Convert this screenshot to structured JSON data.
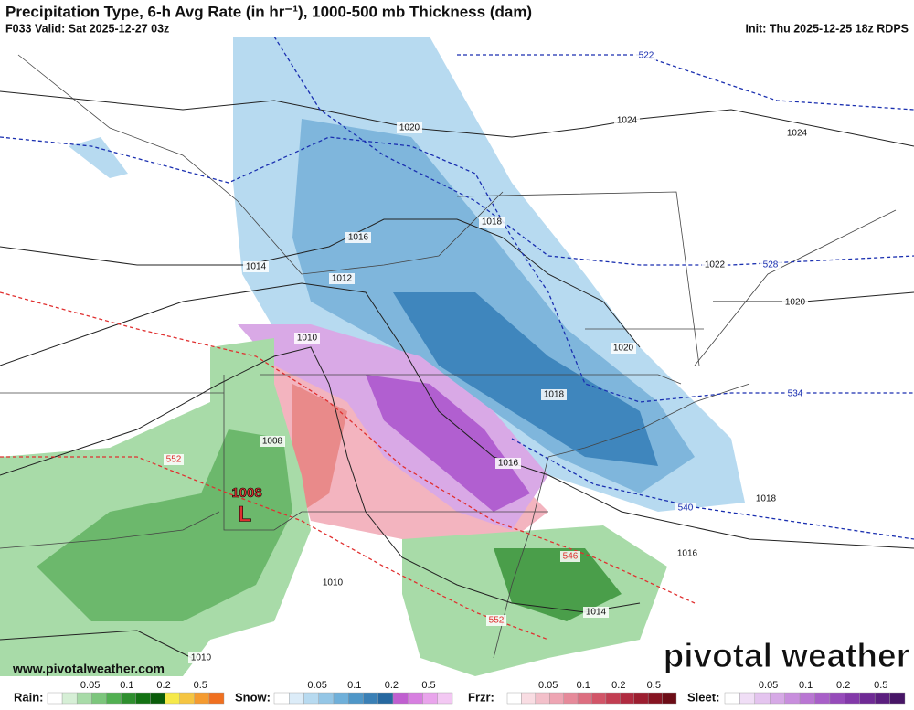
{
  "header": {
    "title": "Precipitation Type, 6-h Avg Rate (in hr⁻¹), 1000-500 mb Thickness (dam)",
    "valid": "F033 Valid: Sat 2025-12-27 03z",
    "init": "Init: Thu 2025-12-25 18z RDPS"
  },
  "map": {
    "isobar_labels": [
      1020,
      1024,
      1024,
      1018,
      1016,
      1014,
      1012,
      1010,
      1008,
      1020,
      1018,
      1016,
      1018,
      1016,
      1010,
      1014,
      1010,
      1022,
      1020
    ],
    "thickness_labels": [
      522,
      528,
      534,
      540,
      546,
      552,
      552
    ],
    "low": {
      "pressure": "1008",
      "letter": "L"
    },
    "website": "www.pivotalweather.com",
    "logo": "pivotal weather"
  },
  "legend": [
    {
      "name": "Rain:",
      "ticks": [
        0.05,
        0.1,
        0.2,
        0.5
      ]
    },
    {
      "name": "Snow:",
      "ticks": [
        0.05,
        0.1,
        0.2,
        0.5
      ]
    },
    {
      "name": "Frzr:",
      "ticks": [
        0.05,
        0.1,
        0.2,
        0.5
      ]
    },
    {
      "name": "Sleet:",
      "ticks": [
        0.05,
        0.1,
        0.2,
        0.5
      ]
    }
  ]
}
